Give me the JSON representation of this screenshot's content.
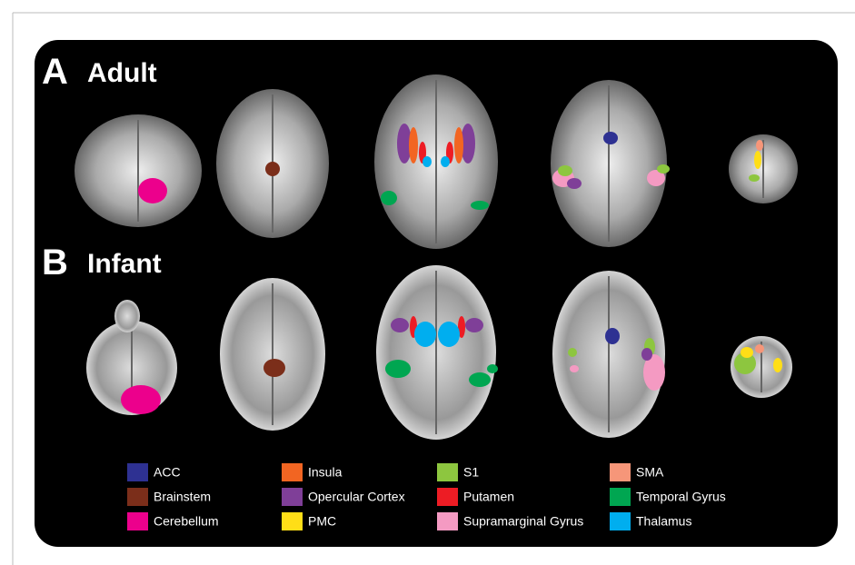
{
  "panels": [
    {
      "letter": "A",
      "title": "Adult"
    },
    {
      "letter": "B",
      "title": "Infant"
    }
  ],
  "legend": [
    {
      "label": "ACC",
      "color": "#2e3192"
    },
    {
      "label": "Insula",
      "color": "#f26522"
    },
    {
      "label": "S1",
      "color": "#8dc63f"
    },
    {
      "label": "SMA",
      "color": "#f69679"
    },
    {
      "label": "Brainstem",
      "color": "#7b2e1a"
    },
    {
      "label": "Opercular Cortex",
      "color": "#7f3f98"
    },
    {
      "label": "Putamen",
      "color": "#ed1c24"
    },
    {
      "label": "Temporal Gyrus",
      "color": "#00a651"
    },
    {
      "label": "Cerebellum",
      "color": "#ec008c"
    },
    {
      "label": "PMC",
      "color": "#ffde17"
    },
    {
      "label": "Supramarginal Gyrus",
      "color": "#f49ac2"
    },
    {
      "label": "Thalamus",
      "color": "#00aeef"
    }
  ]
}
